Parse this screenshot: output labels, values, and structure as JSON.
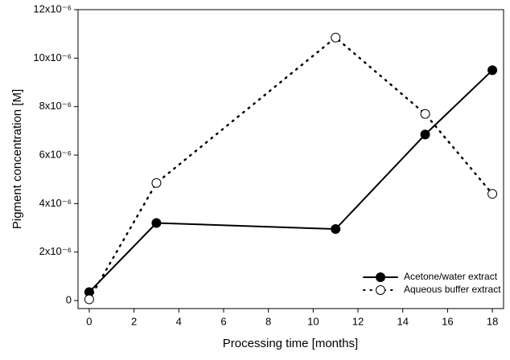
{
  "chart_data": {
    "type": "line",
    "x_label": "Processing time [months]",
    "y_label": "Pigment concentration [M]",
    "x": [
      0,
      3,
      11,
      15,
      18
    ],
    "series": [
      {
        "name": "Acetone/water extract",
        "color": "#000000",
        "line_style": "solid",
        "marker_fill": "#000000",
        "values": [
          3.5e-07,
          3.2e-06,
          2.95e-06,
          6.85e-06,
          9.5e-06
        ]
      },
      {
        "name": "Aqueous buffer extract",
        "color": "#000000",
        "line_style": "dotted",
        "marker_fill": "#ffffff",
        "values": [
          5e-08,
          4.85e-06,
          1.085e-05,
          7.7e-06,
          4.4e-06
        ]
      }
    ],
    "xlim": [
      -0.5,
      18.5
    ],
    "xticks": [
      0,
      2,
      4,
      6,
      8,
      10,
      12,
      14,
      16,
      18
    ],
    "ylim": [
      -3.3e-07,
      1.2e-05
    ],
    "yticks": [
      0,
      {
        "value": 2e-06,
        "label": "2x10⁻⁶"
      },
      {
        "value": 4e-06,
        "label": "4x10⁻⁶"
      },
      {
        "value": 6e-06,
        "label": "6x10⁻⁶"
      },
      {
        "value": 8e-06,
        "label": "8x10⁻⁶"
      },
      {
        "value": 1e-05,
        "label": "10x10⁻⁶"
      },
      {
        "value": 1.2e-05,
        "label": "12x10⁻⁶"
      }
    ],
    "grid": false,
    "legend_position": "lower right"
  }
}
